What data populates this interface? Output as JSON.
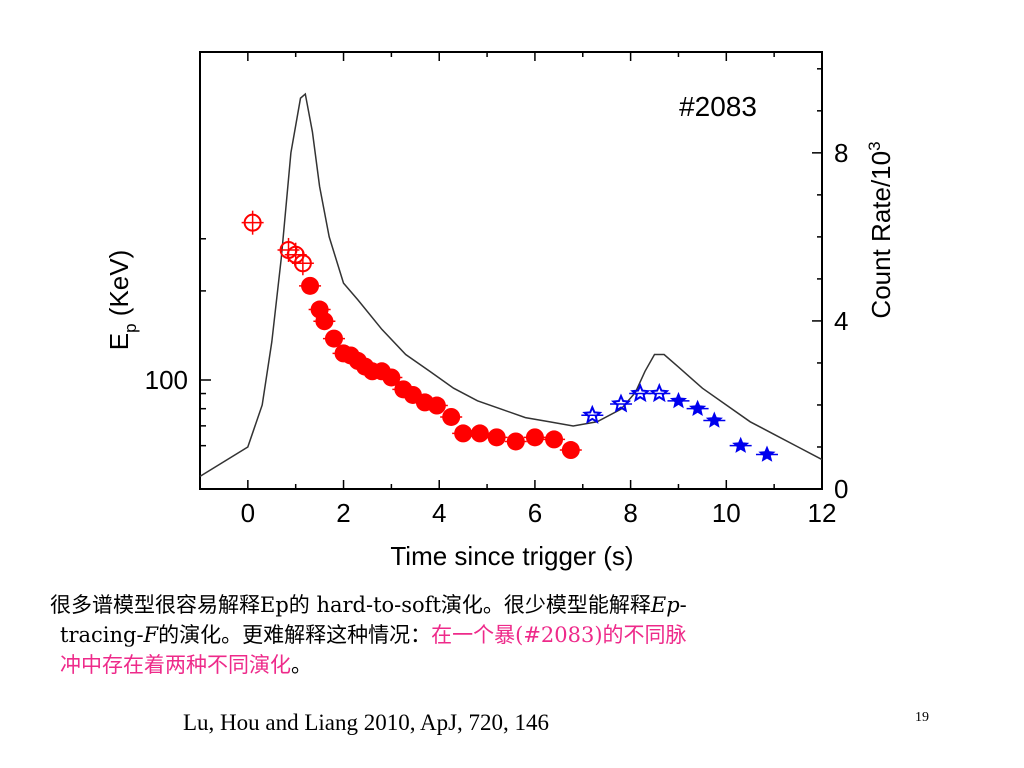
{
  "chart_data": {
    "type": "scatter",
    "annotation": "#2083",
    "xlabel": "Time since trigger (s)",
    "ylabel_left": "E",
    "ylabel_left_sub": "p",
    "ylabel_left_unit": " (KeV)",
    "ylabel_right": "Count Rate/10",
    "ylabel_right_sup": "3",
    "xlim": [
      -1,
      12
    ],
    "x_ticks": [
      "0",
      "2",
      "4",
      "6",
      "8",
      "10",
      "12"
    ],
    "y_left_scale": "log",
    "y_left_ticks": [
      "100"
    ],
    "y_right_lim": [
      0,
      10.4
    ],
    "y_right_ticks": [
      "0",
      "4",
      "8"
    ],
    "series": [
      {
        "marker": "open-circle",
        "color": "#ff0000",
        "points": [
          [
            0.1,
            340
          ],
          [
            0.85,
            275
          ],
          [
            1.0,
            265
          ],
          [
            1.15,
            248
          ]
        ]
      },
      {
        "marker": "filled-circle",
        "color": "#ff0000",
        "points": [
          [
            1.3,
            208
          ],
          [
            1.5,
            173
          ],
          [
            1.6,
            158
          ],
          [
            1.8,
            138
          ],
          [
            2.0,
            123
          ],
          [
            2.15,
            121
          ],
          [
            2.3,
            116
          ],
          [
            2.45,
            111
          ],
          [
            2.6,
            107
          ],
          [
            2.8,
            107
          ],
          [
            3.0,
            102
          ],
          [
            3.25,
            93
          ],
          [
            3.45,
            89
          ],
          [
            3.7,
            84
          ],
          [
            3.95,
            82
          ],
          [
            4.25,
            75
          ],
          [
            4.5,
            66
          ],
          [
            4.85,
            66
          ],
          [
            5.2,
            64
          ],
          [
            5.6,
            62
          ],
          [
            6.0,
            64
          ],
          [
            6.4,
            63
          ],
          [
            6.75,
            58
          ]
        ]
      },
      {
        "marker": "open-star",
        "color": "#0000ee",
        "points": [
          [
            7.2,
            76
          ],
          [
            7.8,
            83
          ],
          [
            8.2,
            90
          ],
          [
            8.6,
            90
          ]
        ]
      },
      {
        "marker": "filled-star",
        "color": "#0000ee",
        "points": [
          [
            9.0,
            85
          ],
          [
            9.4,
            80
          ],
          [
            9.75,
            73
          ],
          [
            10.3,
            60
          ],
          [
            10.85,
            56
          ]
        ]
      },
      {
        "type": "line",
        "axis": "right",
        "color": "#333333",
        "points": [
          [
            -1,
            0.3
          ],
          [
            0,
            1
          ],
          [
            0.3,
            2
          ],
          [
            0.5,
            3.5
          ],
          [
            0.7,
            5.5
          ],
          [
            0.9,
            8
          ],
          [
            1.1,
            9.3
          ],
          [
            1.2,
            9.4
          ],
          [
            1.35,
            8.5
          ],
          [
            1.5,
            7.2
          ],
          [
            1.7,
            6
          ],
          [
            2.0,
            4.9
          ],
          [
            2.3,
            4.5
          ],
          [
            2.8,
            3.8
          ],
          [
            3.3,
            3.2
          ],
          [
            3.8,
            2.8
          ],
          [
            4.3,
            2.4
          ],
          [
            4.8,
            2.1
          ],
          [
            5.3,
            1.9
          ],
          [
            5.8,
            1.7
          ],
          [
            6.3,
            1.6
          ],
          [
            6.8,
            1.5
          ],
          [
            7.3,
            1.6
          ],
          [
            7.8,
            1.9
          ],
          [
            8.1,
            2.3
          ],
          [
            8.3,
            2.8
          ],
          [
            8.5,
            3.2
          ],
          [
            8.7,
            3.2
          ],
          [
            9.0,
            2.9
          ],
          [
            9.5,
            2.4
          ],
          [
            10.0,
            2.0
          ],
          [
            10.5,
            1.6
          ],
          [
            11.0,
            1.3
          ],
          [
            11.5,
            1.0
          ],
          [
            12.0,
            0.7
          ]
        ]
      }
    ]
  },
  "caption": {
    "line1": "很多谱模型很容易解释Ep的 hard-to-soft演化。很少模型能解释",
    "line1_italic": "Ep",
    "line1_tail": "-",
    "line2_start": "tracing-",
    "line2_italic": "F",
    "line2_mid": "的演化。更难解释这种情况：",
    "line2_highlight": "在一个暴(#2083)的不同脉",
    "line3_highlight": "冲中存在着两种不同演化",
    "line3_end": "。"
  },
  "citation": "Lu, Hou and Liang 2010, ApJ, 720, 146",
  "slide_number": "19"
}
